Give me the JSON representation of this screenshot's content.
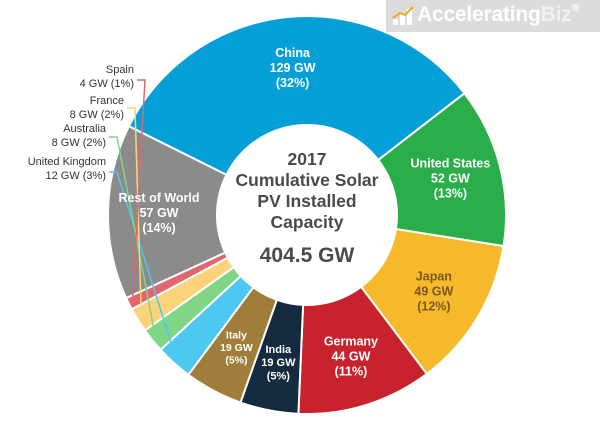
{
  "brand": {
    "name_part1": "Accelerating",
    "name_part2": "Biz",
    "reg_mark": "®"
  },
  "chart_data": {
    "type": "pie",
    "style": "donut",
    "center_text": [
      "2017",
      "Cumulative Solar",
      "PV Installed",
      "Capacity"
    ],
    "total_label": "404.5 GW",
    "total": 404.5,
    "unit": "GW",
    "slices": [
      {
        "name": "China",
        "value": 129,
        "value_label": "129 GW",
        "percent_label": "(32%)",
        "color": "#059fd8",
        "label_color": "#ffffff"
      },
      {
        "name": "United States",
        "value": 52,
        "value_label": "52 GW",
        "percent_label": "(13%)",
        "color": "#29ae49",
        "label_color": "#ffffff"
      },
      {
        "name": "Japan",
        "value": 49,
        "value_label": "49 GW",
        "percent_label": "(12%)",
        "color": "#f6b92b",
        "label_color": "#7a5a1e"
      },
      {
        "name": "Germany",
        "value": 44,
        "value_label": "44 GW",
        "percent_label": "(11%)",
        "color": "#c8232c",
        "label_color": "#ffffff"
      },
      {
        "name": "India",
        "value": 19,
        "value_label": "19 GW",
        "percent_label": "(5%)",
        "color": "#142a3f",
        "label_color": "#ffffff"
      },
      {
        "name": "Italy",
        "value": 19,
        "value_label": "19 GW",
        "percent_label": "(5%)",
        "color": "#a17d3b",
        "label_color": "#ffffff"
      },
      {
        "name": "United Kingdom",
        "value": 12,
        "value_label": "12 GW",
        "percent_label": "(3%)",
        "color": "#4dc8f0",
        "label_color": "#333333"
      },
      {
        "name": "Australia",
        "value": 8,
        "value_label": "8 GW",
        "percent_label": "(2%)",
        "color": "#7fd685",
        "label_color": "#333333"
      },
      {
        "name": "France",
        "value": 8,
        "value_label": "8 GW",
        "percent_label": "(2%)",
        "color": "#fcd37b",
        "label_color": "#333333"
      },
      {
        "name": "Spain",
        "value": 4,
        "value_label": "4 GW",
        "percent_label": "(1%)",
        "color": "#e0676d",
        "label_color": "#333333"
      },
      {
        "name": "Rest of World",
        "value": 57,
        "value_label": "57 GW",
        "percent_label": "(14%)",
        "color": "#8b8b8b",
        "label_color": "#ffffff"
      }
    ]
  }
}
